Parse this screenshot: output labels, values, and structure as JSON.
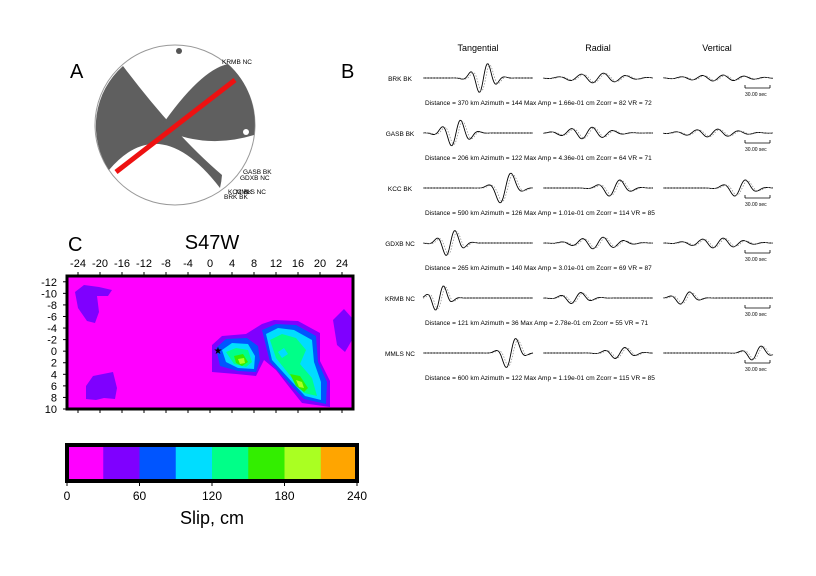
{
  "panel_letters": {
    "a": "A",
    "b": "B",
    "c": "C"
  },
  "beachball": {
    "station_labels": [
      "KRMB NC",
      "GASB BK",
      "GDXB NC",
      "KCC BK",
      "BRK BK",
      "MMLS NC"
    ],
    "fault_line_color": "#ee1111",
    "compressional_color": "#5f5f5f"
  },
  "waveforms": {
    "column_headers": [
      "Tangential",
      "Radial",
      "Vertical"
    ],
    "scale_label": "30.00 sec",
    "stations": [
      {
        "name": "BRK BK",
        "info": "Distance = 370 km  Azimuth = 144   Max Amp = 1.66e-01 cm  Zcorr = 82   VR = 72"
      },
      {
        "name": "GASB BK",
        "info": "Distance = 206 km  Azimuth = 122   Max Amp = 4.36e-01 cm  Zcorr = 64   VR = 71"
      },
      {
        "name": "KCC BK",
        "info": "Distance = 590 km  Azimuth = 126   Max Amp = 1.01e-01 cm  Zcorr = 114   VR = 85"
      },
      {
        "name": "GDXB NC",
        "info": "Distance = 265 km  Azimuth = 140   Max Amp = 3.01e-01 cm  Zcorr = 69   VR = 87"
      },
      {
        "name": "KRMB NC",
        "info": "Distance = 121 km  Azimuth = 36   Max Amp = 2.78e-01 cm  Zcorr = 55   VR = 71"
      },
      {
        "name": "MMLS NC",
        "info": "Distance = 600 km  Azimuth = 122   Max Amp = 1.19e-01 cm  Zcorr = 115   VR = 85"
      }
    ]
  },
  "slip_map": {
    "title": "S47W",
    "x_ticks": [
      "-24",
      "-20",
      "-16",
      "-12",
      "-8",
      "-4",
      "0",
      "4",
      "8",
      "12",
      "16",
      "20",
      "24"
    ],
    "y_ticks": [
      "-12",
      "-10",
      "-8",
      "-6",
      "-4",
      "-2",
      "0",
      "2",
      "4",
      "6",
      "8",
      "10"
    ],
    "background_color": "#ff00ff",
    "hypocenter_symbol": "★"
  },
  "colorbar": {
    "colors": [
      "#ff00ff",
      "#7f00ff",
      "#0055ff",
      "#00ddff",
      "#00ff88",
      "#33ee00",
      "#aaff22",
      "#ffa500"
    ],
    "tick_labels": [
      "0",
      "60",
      "120",
      "180",
      "240"
    ],
    "label": "Slip, cm"
  },
  "chart_data": {
    "type": "heatmap",
    "title": "S47W",
    "xlabel": "",
    "ylabel": "",
    "xlim": [
      -26,
      26
    ],
    "ylim": [
      -13,
      10
    ],
    "color_scale": {
      "min": 0,
      "max": 240,
      "unit": "cm",
      "label": "Slip, cm"
    },
    "notes": "contoured slip distribution; peak slip near x=4, y=2 and x=16, y=5"
  }
}
